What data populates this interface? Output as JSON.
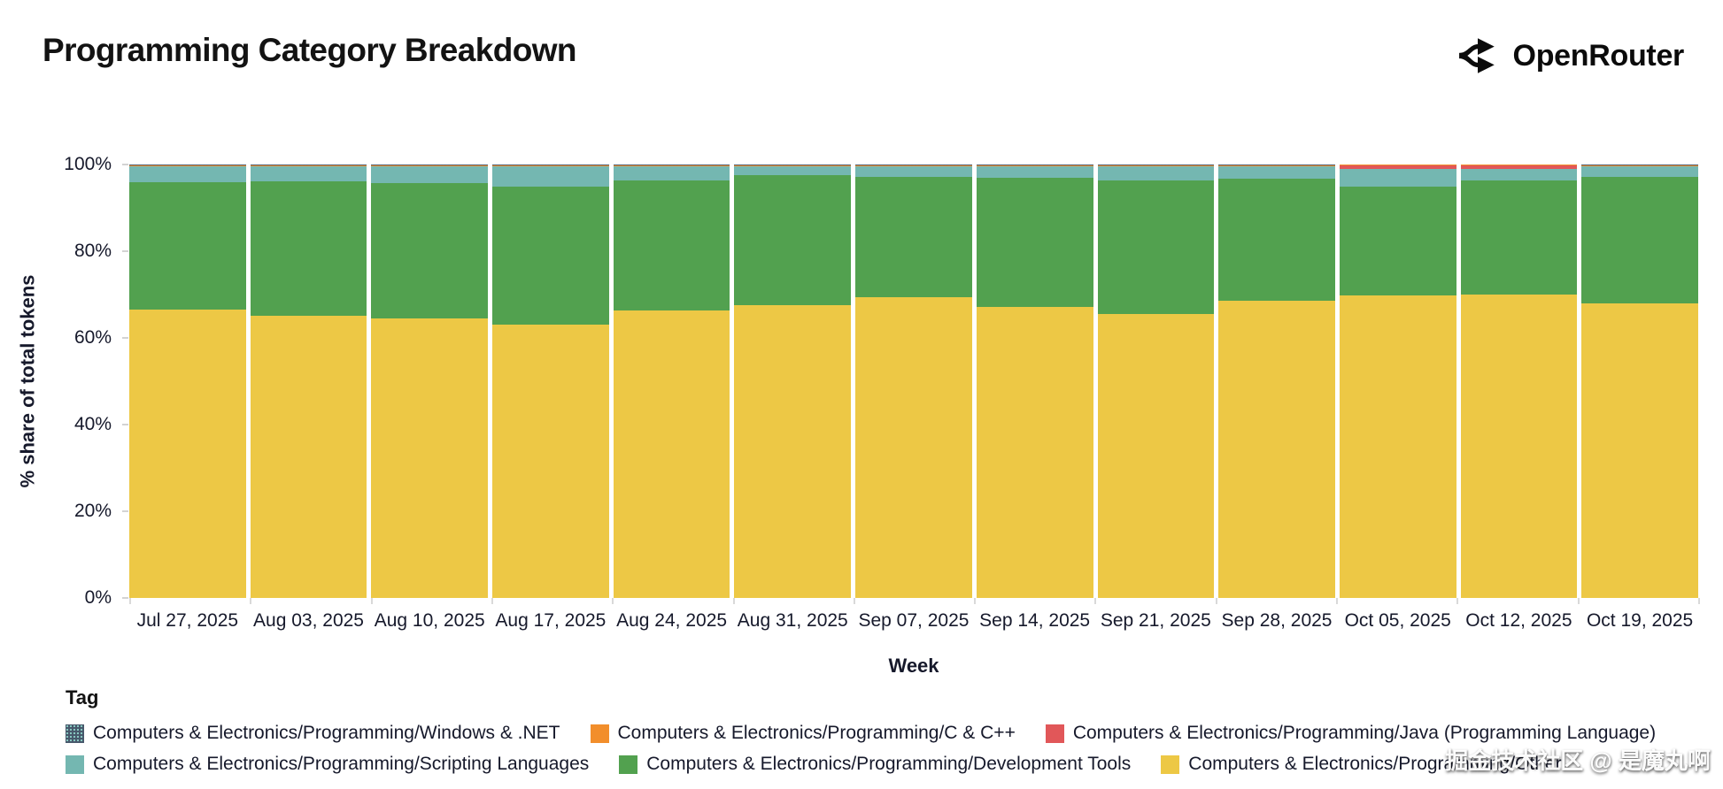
{
  "header": {
    "brand": "OpenRouter"
  },
  "chart_data": {
    "type": "bar",
    "stacked": true,
    "title": "Programming Category Breakdown",
    "xlabel": "Week",
    "ylabel": "% share of total tokens",
    "ylim": [
      0,
      100
    ],
    "yticks": [
      "100%",
      "80%",
      "60%",
      "40%",
      "20%",
      "0%"
    ],
    "legend_position": "bottom",
    "grid": false,
    "categories": [
      "Jul 27, 2025",
      "Aug 03, 2025",
      "Aug 10, 2025",
      "Aug 17, 2025",
      "Aug 24, 2025",
      "Aug 31, 2025",
      "Sep 07, 2025",
      "Sep 14, 2025",
      "Sep 21, 2025",
      "Sep 28, 2025",
      "Oct 05, 2025",
      "Oct 12, 2025",
      "Oct 19, 2025"
    ],
    "series": [
      {
        "name": "Computers & Electronics/Programming/Other",
        "values": [
          66.5,
          65.0,
          64.5,
          63.0,
          66.3,
          67.6,
          69.4,
          67.1,
          65.6,
          68.6,
          69.7,
          69.9,
          67.9
        ]
      },
      {
        "name": "Computers & Electronics/Programming/Development Tools",
        "values": [
          29.4,
          31.2,
          31.2,
          31.9,
          30.1,
          29.9,
          27.8,
          29.8,
          30.8,
          28.1,
          25.2,
          26.5,
          29.3
        ]
      },
      {
        "name": "Computers & Electronics/Programming/Scripting Languages",
        "values": [
          3.6,
          3.3,
          3.8,
          4.6,
          3.1,
          2.0,
          2.3,
          2.6,
          3.1,
          2.8,
          4.0,
          2.5,
          2.3
        ]
      },
      {
        "name": "Computers & Electronics/Programming/Java (Programming Language)",
        "values": [
          0,
          0,
          0,
          0,
          0,
          0,
          0,
          0,
          0,
          0,
          0.9,
          0.9,
          0
        ]
      },
      {
        "name": "Computers & Electronics/Programming/C & C++",
        "values": [
          0.3,
          0.3,
          0.3,
          0.3,
          0.3,
          0.3,
          0.3,
          0.3,
          0.3,
          0.3,
          0.1,
          0.1,
          0.3
        ]
      },
      {
        "name": "Computers & Electronics/Programming/Windows & .NET",
        "values": [
          0.2,
          0.2,
          0.2,
          0.2,
          0.2,
          0.2,
          0.2,
          0.2,
          0.2,
          0.2,
          0.1,
          0.1,
          0.2
        ]
      }
    ]
  },
  "legend": {
    "title": "Tag",
    "rows": [
      [
        {
          "label": "Computers & Electronics/Programming/Windows & .NET",
          "color": "#47586b",
          "pattern": "speckle"
        },
        {
          "label": "Computers & Electronics/Programming/C & C++",
          "color": "#f28e2b"
        },
        {
          "label": "Computers & Electronics/Programming/Java (Programming Language)",
          "color": "#e15759"
        }
      ],
      [
        {
          "label": "Computers & Electronics/Programming/Scripting Languages",
          "color": "#74b7b1"
        },
        {
          "label": "Computers & Electronics/Programming/Development Tools",
          "color": "#52a14f"
        },
        {
          "label": "Computers & Electronics/Programming/Other",
          "color": "#edc845"
        }
      ]
    ]
  },
  "watermark": {
    "text": "掘金技术社区 @ 是魔丸啊"
  }
}
